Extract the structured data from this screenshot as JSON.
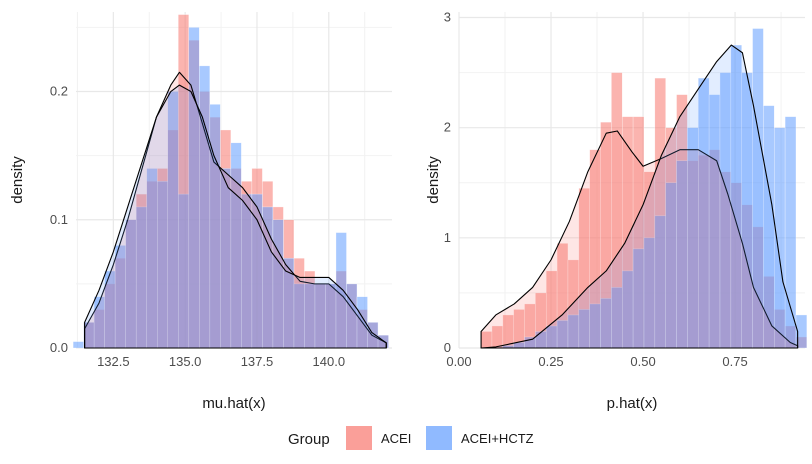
{
  "chart_data": [
    {
      "type": "histogram-density",
      "xlabel": "mu.hat(x)",
      "ylabel": "density",
      "xlim": [
        131.2,
        142.2
      ],
      "ylim": [
        0,
        0.262
      ],
      "xticks": [
        132.5,
        135.0,
        137.5,
        140.0
      ],
      "xtick_labels": [
        "132.5",
        "135.0",
        "137.5",
        "140.0"
      ],
      "yticks": [
        0,
        0.1,
        0.2
      ],
      "ytick_labels": [
        "0.0",
        "0.1",
        "0.2"
      ],
      "grid": true,
      "series": [
        {
          "name": "ACEI",
          "color": "#F8766D",
          "bin_start": 131.1,
          "bin_width": 0.366,
          "values": [
            0,
            0.02,
            0.03,
            0.05,
            0.07,
            0.1,
            0.12,
            0.13,
            0.14,
            0.17,
            0.26,
            0.24,
            0.2,
            0.18,
            0.17,
            0.14,
            0.13,
            0.14,
            0.13,
            0.11,
            0.1,
            0.07,
            0.06,
            0.05,
            0.05,
            0.06,
            0.05,
            0.03,
            0.02,
            0.01,
            0
          ],
          "density": [
            [
              131.5,
              0.015
            ],
            [
              132.0,
              0.035
            ],
            [
              132.5,
              0.065
            ],
            [
              133.0,
              0.1
            ],
            [
              133.5,
              0.14
            ],
            [
              134.0,
              0.18
            ],
            [
              134.5,
              0.205
            ],
            [
              134.8,
              0.215
            ],
            [
              135.2,
              0.205
            ],
            [
              135.6,
              0.175
            ],
            [
              136.0,
              0.145
            ],
            [
              136.5,
              0.135
            ],
            [
              137.0,
              0.125
            ],
            [
              137.5,
              0.11
            ],
            [
              138.0,
              0.085
            ],
            [
              138.5,
              0.065
            ],
            [
              139.0,
              0.052
            ],
            [
              139.5,
              0.05
            ],
            [
              140.0,
              0.05
            ],
            [
              140.5,
              0.04
            ],
            [
              141.0,
              0.025
            ],
            [
              141.5,
              0.01
            ],
            [
              142.0,
              0.004
            ]
          ]
        },
        {
          "name": "ACEI+HCTZ",
          "color": "#619CFF",
          "bin_start": 131.1,
          "bin_width": 0.366,
          "values": [
            0.005,
            0.02,
            0.04,
            0.06,
            0.08,
            0.1,
            0.11,
            0.14,
            0.13,
            0.2,
            0.12,
            0.25,
            0.22,
            0.19,
            0.14,
            0.16,
            0.12,
            0.12,
            0.11,
            0.1,
            0.07,
            0.05,
            0.05,
            0.05,
            0.05,
            0.09,
            0.05,
            0.04,
            0.02,
            0.01,
            0
          ],
          "density": [
            [
              131.5,
              0.02
            ],
            [
              132.0,
              0.045
            ],
            [
              132.5,
              0.075
            ],
            [
              133.0,
              0.11
            ],
            [
              133.5,
              0.145
            ],
            [
              134.0,
              0.18
            ],
            [
              134.5,
              0.2
            ],
            [
              134.8,
              0.205
            ],
            [
              135.2,
              0.2
            ],
            [
              135.6,
              0.18
            ],
            [
              136.0,
              0.15
            ],
            [
              136.5,
              0.125
            ],
            [
              137.0,
              0.115
            ],
            [
              137.5,
              0.1
            ],
            [
              138.0,
              0.075
            ],
            [
              138.5,
              0.06
            ],
            [
              139.0,
              0.055
            ],
            [
              139.5,
              0.055
            ],
            [
              140.0,
              0.055
            ],
            [
              140.5,
              0.045
            ],
            [
              141.0,
              0.03
            ],
            [
              141.5,
              0.012
            ],
            [
              142.0,
              0.004
            ]
          ]
        }
      ]
    },
    {
      "type": "histogram-density",
      "xlabel": "p.hat(x)",
      "ylabel": "density",
      "xlim": [
        0,
        0.94
      ],
      "ylim": [
        0,
        3.05
      ],
      "xticks": [
        0.0,
        0.25,
        0.5,
        0.75
      ],
      "xtick_labels": [
        "0.00",
        "0.25",
        "0.50",
        "0.75"
      ],
      "yticks": [
        0,
        1,
        2,
        3
      ],
      "ytick_labels": [
        "0",
        "1",
        "2",
        "3"
      ],
      "grid": true,
      "series": [
        {
          "name": "ACEI",
          "color": "#F8766D",
          "bin_start": 0.06,
          "bin_width": 0.0295,
          "values": [
            0.15,
            0.2,
            0.3,
            0.35,
            0.4,
            0.5,
            0.7,
            0.95,
            0.8,
            1.45,
            1.8,
            2.05,
            2.5,
            2.1,
            2.1,
            1.6,
            2.45,
            2.0,
            2.3,
            1.7,
            1.75,
            1.8,
            1.6,
            1.5,
            1.3,
            1.1,
            0.65,
            0.35,
            0.2,
            0.1
          ],
          "density": [
            [
              0.06,
              0.15
            ],
            [
              0.1,
              0.3
            ],
            [
              0.15,
              0.4
            ],
            [
              0.2,
              0.55
            ],
            [
              0.25,
              0.8
            ],
            [
              0.3,
              1.15
            ],
            [
              0.35,
              1.6
            ],
            [
              0.4,
              1.95
            ],
            [
              0.43,
              1.97
            ],
            [
              0.47,
              1.78
            ],
            [
              0.5,
              1.65
            ],
            [
              0.55,
              1.72
            ],
            [
              0.6,
              1.8
            ],
            [
              0.65,
              1.8
            ],
            [
              0.7,
              1.7
            ],
            [
              0.73,
              1.4
            ],
            [
              0.77,
              0.95
            ],
            [
              0.8,
              0.55
            ],
            [
              0.85,
              0.2
            ],
            [
              0.9,
              0.05
            ],
            [
              0.92,
              0.02
            ]
          ]
        },
        {
          "name": "ACEI+HCTZ",
          "color": "#619CFF",
          "bin_start": 0.06,
          "bin_width": 0.0295,
          "values": [
            0,
            0,
            0.02,
            0.05,
            0.1,
            0.15,
            0.2,
            0.25,
            0.3,
            0.35,
            0.4,
            0.45,
            0.55,
            0.7,
            0.9,
            1.0,
            1.2,
            1.5,
            1.7,
            2.0,
            2.45,
            2.3,
            2.5,
            2.75,
            2.5,
            2.9,
            2.2,
            2.0,
            2.1,
            0.3
          ],
          "density": [
            [
              0.06,
              0
            ],
            [
              0.1,
              0.01
            ],
            [
              0.2,
              0.08
            ],
            [
              0.28,
              0.3
            ],
            [
              0.35,
              0.55
            ],
            [
              0.4,
              0.7
            ],
            [
              0.45,
              0.95
            ],
            [
              0.5,
              1.3
            ],
            [
              0.55,
              1.75
            ],
            [
              0.6,
              2.1
            ],
            [
              0.65,
              2.35
            ],
            [
              0.7,
              2.6
            ],
            [
              0.74,
              2.75
            ],
            [
              0.77,
              2.68
            ],
            [
              0.8,
              2.2
            ],
            [
              0.85,
              1.3
            ],
            [
              0.88,
              0.6
            ],
            [
              0.92,
              0.15
            ]
          ]
        }
      ]
    }
  ],
  "legend": {
    "title": "Group",
    "items": [
      {
        "label": "ACEI",
        "color": "#F8766D"
      },
      {
        "label": "ACEI+HCTZ",
        "color": "#619CFF"
      }
    ]
  }
}
